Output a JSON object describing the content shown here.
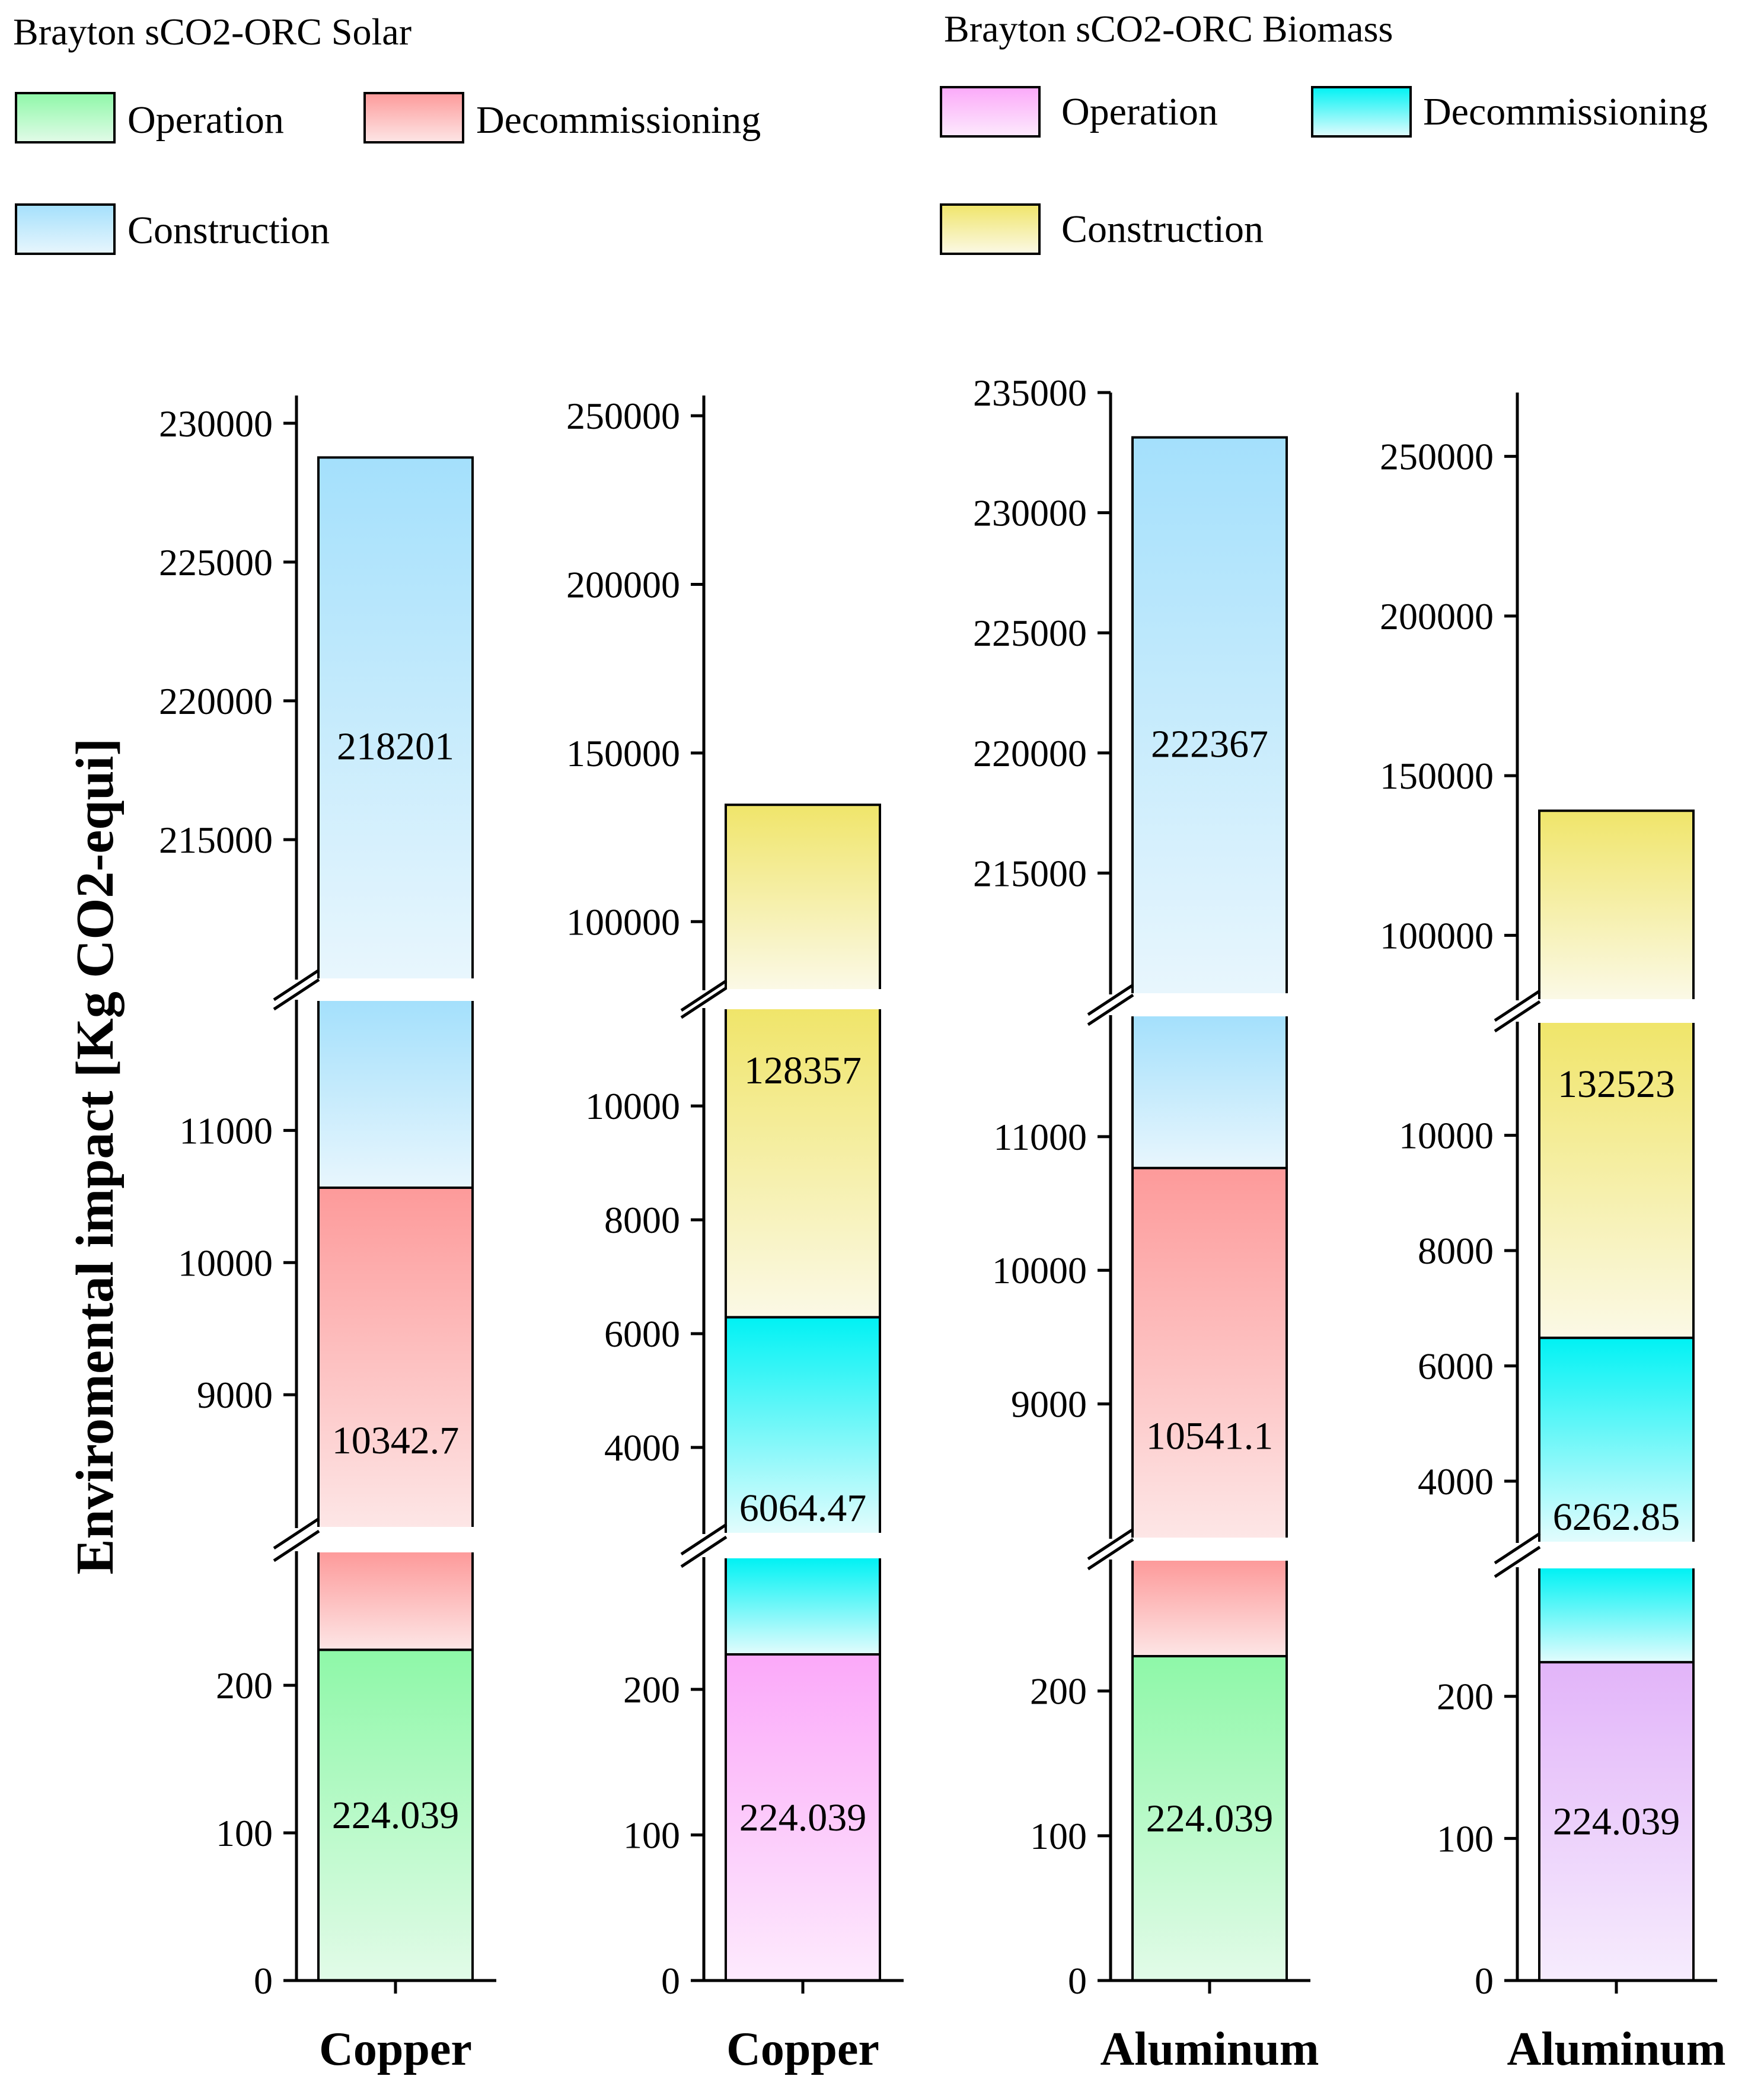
{
  "chart_data": {
    "type": "bar",
    "stacked": true,
    "broken_axis": true,
    "ylabel": "Enviromental impact [Kg CO2-equi]",
    "legends": [
      {
        "title": "Brayton sCO2-ORC Solar",
        "items": [
          {
            "label": "Operation",
            "top": "#8ef8a8",
            "bottom": "#e2fbe8"
          },
          {
            "label": "Decommissioning",
            "top": "#fd9a9a",
            "bottom": "#fde6e6"
          },
          {
            "label": "Construction",
            "top": "#a4e0fc",
            "bottom": "#e8f6fd"
          }
        ]
      },
      {
        "title": "Brayton sCO2-ORC Biomass",
        "items": [
          {
            "label": "Operation",
            "top": "#fba9f9",
            "bottom": "#fdeafd"
          },
          {
            "label": "Decommissioning",
            "top": "#00f2f4",
            "bottom": "#e2fcfd"
          },
          {
            "label": "Construction",
            "top": "#f0e56a",
            "bottom": "#fbf9e6"
          }
        ]
      }
    ],
    "panels": [
      {
        "category": "Copper",
        "series": [
          {
            "name": "Operation",
            "value": 224.039,
            "label": "224.039",
            "top": "#8ef8a8",
            "bottom": "#e2fbe8",
            "segment": 0
          },
          {
            "name": "Decommissioning",
            "value": 10342.7,
            "label": "10342.7",
            "top": "#fd9a9a",
            "bottom": "#fde6e6",
            "segment": 1
          },
          {
            "name": "Construction",
            "value": 218201,
            "label": "218201",
            "top": "#a4e0fc",
            "bottom": "#e8f6fd",
            "segment": 2
          }
        ],
        "segments": [
          {
            "ylim": [
              0,
              290
            ],
            "ticks": [
              "0",
              "100",
              "200"
            ]
          },
          {
            "ylim": [
              8000,
              11980
            ],
            "ticks": [
              "9000",
              "10000",
              "11000"
            ]
          },
          {
            "ylim": [
              210000,
              231000
            ],
            "ticks": [
              "215000",
              "220000",
              "225000",
              "230000"
            ]
          }
        ]
      },
      {
        "category": "Copper",
        "series": [
          {
            "name": "Operation",
            "value": 224.039,
            "label": "224.039",
            "top": "#fba9f9",
            "bottom": "#fdeafd",
            "segment": 0
          },
          {
            "name": "Decommissioning",
            "value": 6064.47,
            "label": "6064.47",
            "top": "#00f2f4",
            "bottom": "#e2fcfd",
            "segment": 1
          },
          {
            "name": "Construction",
            "value": 128357,
            "label": "128357",
            "top": "#f0e56a",
            "bottom": "#fbf9e6",
            "segment": 2
          }
        ],
        "segments": [
          {
            "ylim": [
              0,
              290
            ],
            "ticks": [
              "0",
              "100",
              "200"
            ]
          },
          {
            "ylim": [
              2500,
              11700
            ],
            "ticks": [
              "4000",
              "6000",
              "8000",
              "10000"
            ]
          },
          {
            "ylim": [
              80000,
              256000
            ],
            "ticks": [
              "100000",
              "150000",
              "200000",
              "250000"
            ]
          }
        ]
      },
      {
        "category": "Aluminum",
        "series": [
          {
            "name": "Operation",
            "value": 224.039,
            "label": "224.039",
            "top": "#8ef8a8",
            "bottom": "#e2fbe8",
            "segment": 0
          },
          {
            "name": "Decommissioning",
            "value": 10541.1,
            "label": "10541.1",
            "top": "#fd9a9a",
            "bottom": "#fde6e6",
            "segment": 1
          },
          {
            "name": "Construction",
            "value": 222367,
            "label": "222367",
            "top": "#a4e0fc",
            "bottom": "#e8f6fd",
            "segment": 2
          }
        ],
        "segments": [
          {
            "ylim": [
              0,
              290
            ],
            "ticks": [
              "0",
              "100",
              "200"
            ]
          },
          {
            "ylim": [
              8000,
              11900
            ],
            "ticks": [
              "9000",
              "10000",
              "11000"
            ]
          },
          {
            "ylim": [
              210000,
              235000
            ],
            "ticks": [
              "215000",
              "220000",
              "225000",
              "230000",
              "235000"
            ]
          }
        ]
      },
      {
        "category": "Aluminum",
        "series": [
          {
            "name": "Operation",
            "value": 224.039,
            "label": "224.039",
            "top": "#e2b4f9",
            "bottom": "#f6ecfd",
            "segment": 0
          },
          {
            "name": "Decommissioning",
            "value": 6262.85,
            "label": "6262.85",
            "top": "#00f2f4",
            "bottom": "#e2fcfd",
            "segment": 1
          },
          {
            "name": "Construction",
            "value": 132523,
            "label": "132523",
            "top": "#f0e56a",
            "bottom": "#fbf9e6",
            "segment": 2
          }
        ],
        "segments": [
          {
            "ylim": [
              0,
              290
            ],
            "ticks": [
              "0",
              "100",
              "200"
            ]
          },
          {
            "ylim": [
              2950,
              11950
            ],
            "ticks": [
              "4000",
              "6000",
              "8000",
              "10000"
            ]
          },
          {
            "ylim": [
              80000,
              270000
            ],
            "ticks": [
              "100000",
              "150000",
              "200000",
              "250000"
            ]
          }
        ]
      }
    ]
  }
}
